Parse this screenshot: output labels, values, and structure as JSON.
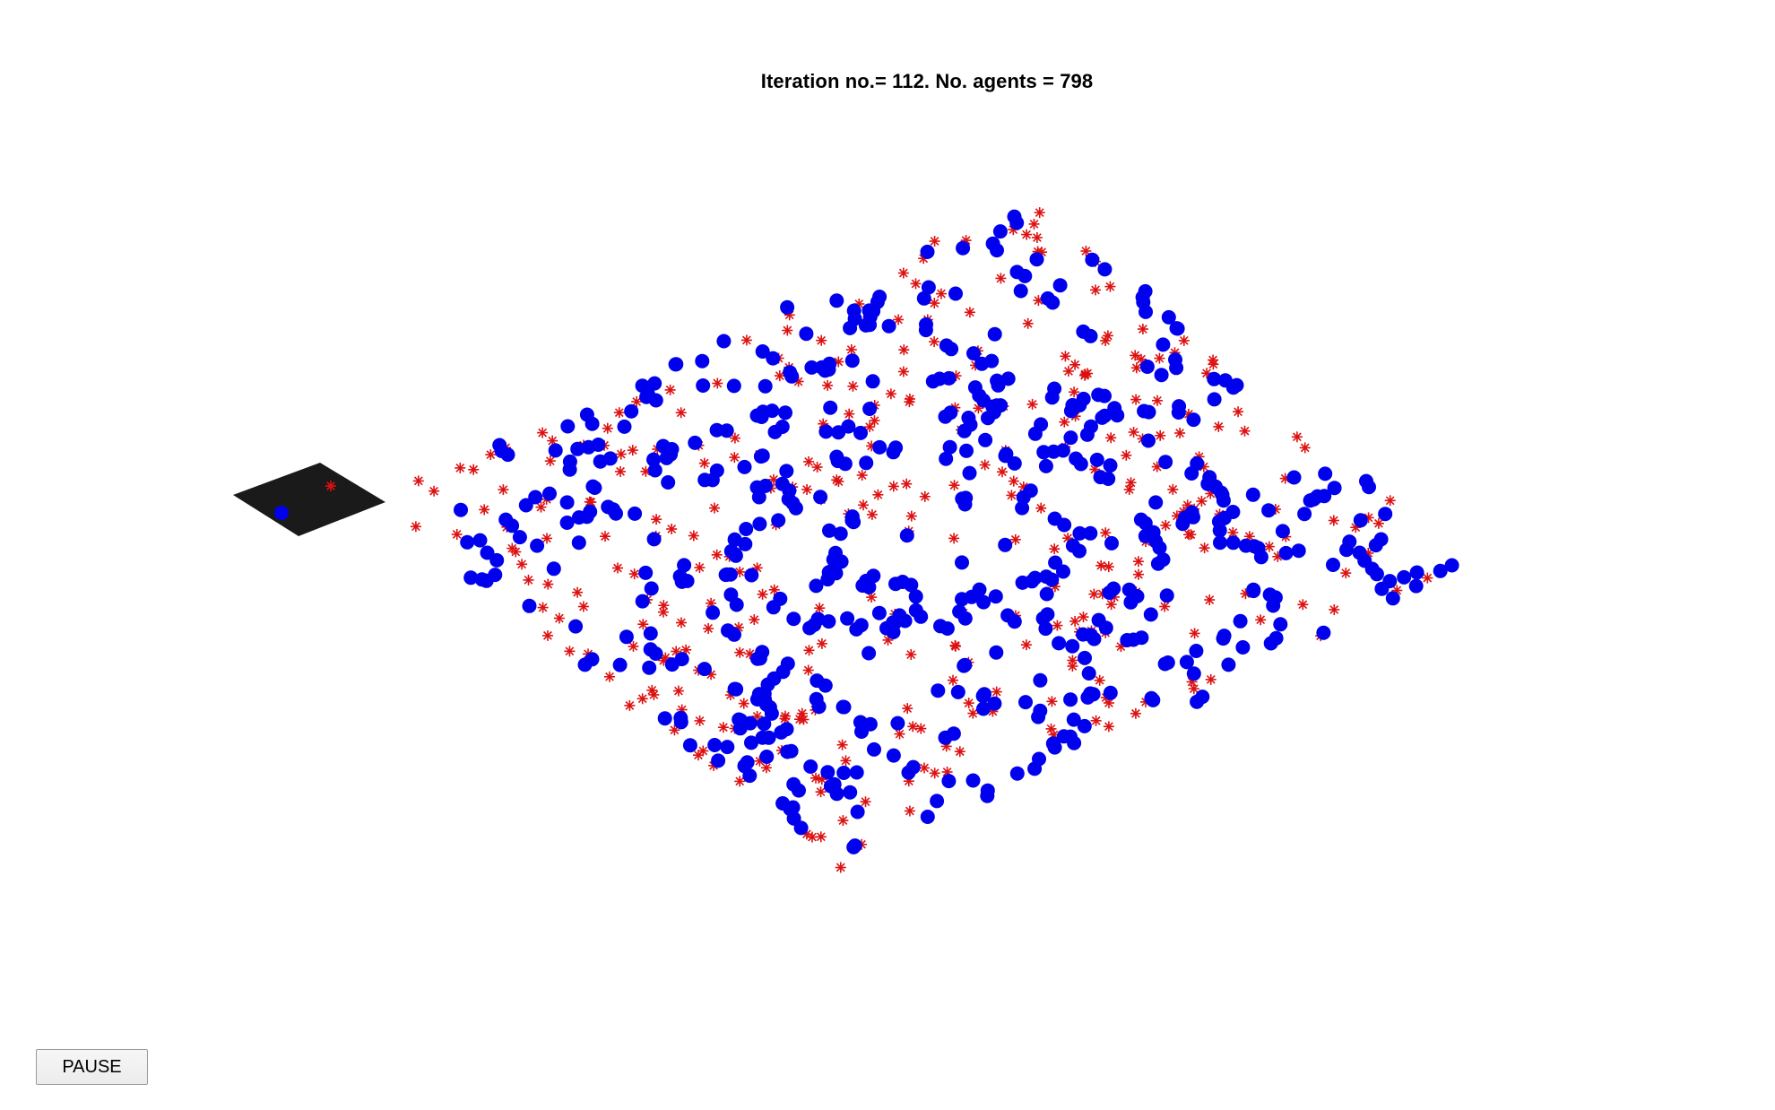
{
  "figure": {
    "title": "Iteration no.= 112.  No. agents = 798"
  },
  "controls": {
    "pause_label": "PAUSE"
  },
  "colors": {
    "agent_dot": "#0000ee",
    "agent_star": "#dd1111",
    "region_fill": "#1a1a1a",
    "background": "#ffffff"
  },
  "simulation": {
    "iteration": 112,
    "agents": 798
  },
  "markers": {
    "dot_name": "blue-circle-agent",
    "star_name": "red-asterisk-agent"
  }
}
